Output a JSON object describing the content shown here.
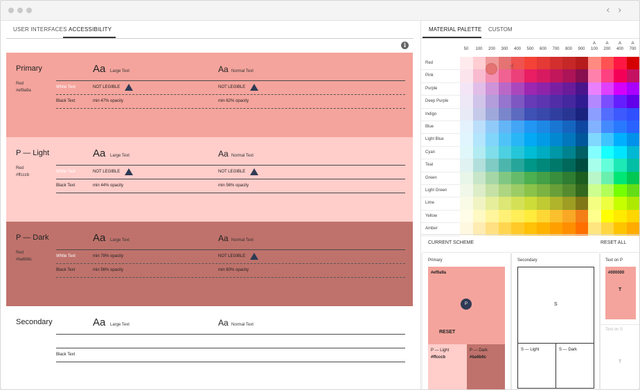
{
  "left_tabs": {
    "user_interfaces": "USER INTERFACES",
    "accessibility": "ACCESSIBILITY"
  },
  "info_icon": "i",
  "sample": {
    "aa": "Aa",
    "large": "Large Text",
    "normal": "Normal Text",
    "white_text": "White Text",
    "black_text": "Black Text",
    "not_legible": "NOT LEGIBLE",
    "warn": "!"
  },
  "rows": [
    {
      "name": "Primary",
      "hue": "Red",
      "hex": "#ef9a9a",
      "bg": "#f4a49c",
      "white_large": "NOT LEGIBLE",
      "white_normal": "NOT LEGIBLE",
      "black_large": "min 47% opacity",
      "black_normal": "min 62% opacity"
    },
    {
      "name": "P — Light",
      "hue": "Red",
      "hex": "#ffcccb",
      "bg": "#ffcdca",
      "white_large": "NOT LEGIBLE",
      "white_normal": "NOT LEGIBLE",
      "black_large": "min 44% opacity",
      "black_normal": "min 56% opacity"
    },
    {
      "name": "P — Dark",
      "hue": "Red",
      "hex": "#ba6b6c",
      "bg": "#bf726b",
      "white_large": "min 78% opacity",
      "white_normal": "NOT LEGIBLE",
      "black_large": "min 56% opacity",
      "black_normal": "min 60% opacity"
    },
    {
      "name": "Secondary",
      "black_text": "Black Text"
    }
  ],
  "right_tabs": {
    "material_palette": "MATERIAL PALETTE",
    "custom": "CUSTOM"
  },
  "shades": [
    "50",
    "100",
    "200",
    "300",
    "400",
    "500",
    "600",
    "700",
    "800",
    "900",
    "A\n100",
    "A\n200",
    "A\n400",
    "A\n700"
  ],
  "shade_top": [
    "",
    "",
    "",
    "",
    "",
    "",
    "",
    "",
    "",
    "",
    "A",
    "A",
    "A",
    "A"
  ],
  "shade_bottom": [
    "50",
    "100",
    "200",
    "300",
    "400",
    "500",
    "600",
    "700",
    "800",
    "900",
    "100",
    "200",
    "400",
    "700"
  ],
  "palette": [
    {
      "name": "Red",
      "colors": [
        "#ffebee",
        "#ffcdd2",
        "#ef9a9a",
        "#e57373",
        "#ef5350",
        "#f44336",
        "#e53935",
        "#d32f2f",
        "#c62828",
        "#b71c1c",
        "#ff8a80",
        "#ff5252",
        "#ff1744",
        "#d50000"
      ]
    },
    {
      "name": "Pink",
      "colors": [
        "#fce4ec",
        "#f8bbd0",
        "#f48fb1",
        "#f06292",
        "#ec407a",
        "#e91e63",
        "#d81b60",
        "#c2185b",
        "#ad1457",
        "#880e4f",
        "#ff80ab",
        "#ff4081",
        "#f50057",
        "#c51162"
      ]
    },
    {
      "name": "Purple",
      "colors": [
        "#f3e5f5",
        "#e1bee7",
        "#ce93d8",
        "#ba68c8",
        "#ab47bc",
        "#9c27b0",
        "#8e24aa",
        "#7b1fa2",
        "#6a1b9a",
        "#4a148c",
        "#ea80fc",
        "#e040fb",
        "#d500f9",
        "#aa00ff"
      ]
    },
    {
      "name": "Deep Purple",
      "colors": [
        "#ede7f6",
        "#d1c4e9",
        "#b39ddb",
        "#9575cd",
        "#7e57c2",
        "#673ab7",
        "#5e35b1",
        "#512da8",
        "#4527a0",
        "#311b92",
        "#b388ff",
        "#7c4dff",
        "#651fff",
        "#6200ea"
      ]
    },
    {
      "name": "Indigo",
      "colors": [
        "#e8eaf6",
        "#c5cae9",
        "#9fa8da",
        "#7986cb",
        "#5c6bc0",
        "#3f51b5",
        "#3949ab",
        "#303f9f",
        "#283593",
        "#1a237e",
        "#8c9eff",
        "#536dfe",
        "#3d5afe",
        "#304ffe"
      ]
    },
    {
      "name": "Blue",
      "colors": [
        "#e3f2fd",
        "#bbdefb",
        "#90caf9",
        "#64b5f6",
        "#42a5f5",
        "#2196f3",
        "#1e88e5",
        "#1976d2",
        "#1565c0",
        "#0d47a1",
        "#82b1ff",
        "#448aff",
        "#2979ff",
        "#2962ff"
      ]
    },
    {
      "name": "Light Blue",
      "colors": [
        "#e1f5fe",
        "#b3e5fc",
        "#81d4fa",
        "#4fc3f7",
        "#29b6f6",
        "#03a9f4",
        "#039be5",
        "#0288d1",
        "#0277bd",
        "#01579b",
        "#80d8ff",
        "#40c4ff",
        "#00b0ff",
        "#0091ea"
      ]
    },
    {
      "name": "Cyan",
      "colors": [
        "#e0f7fa",
        "#b2ebf2",
        "#80deea",
        "#4dd0e1",
        "#26c6da",
        "#00bcd4",
        "#00acc1",
        "#0097a7",
        "#00838f",
        "#006064",
        "#84ffff",
        "#18ffff",
        "#00e5ff",
        "#00b8d4"
      ]
    },
    {
      "name": "Teal",
      "colors": [
        "#e0f2f1",
        "#b2dfdb",
        "#80cbc4",
        "#4db6ac",
        "#26a69a",
        "#009688",
        "#00897b",
        "#00796b",
        "#00695c",
        "#004d40",
        "#a7ffeb",
        "#64ffda",
        "#1de9b6",
        "#00bfa5"
      ]
    },
    {
      "name": "Green",
      "colors": [
        "#e8f5e9",
        "#c8e6c9",
        "#a5d6a7",
        "#81c784",
        "#66bb6a",
        "#4caf50",
        "#43a047",
        "#388e3c",
        "#2e7d32",
        "#1b5e20",
        "#b9f6ca",
        "#69f0ae",
        "#00e676",
        "#00c853"
      ]
    },
    {
      "name": "Light Green",
      "colors": [
        "#f1f8e9",
        "#dcedc8",
        "#c5e1a5",
        "#aed581",
        "#9ccc65",
        "#8bc34a",
        "#7cb342",
        "#689f38",
        "#558b2f",
        "#33691e",
        "#ccff90",
        "#b2ff59",
        "#76ff03",
        "#64dd17"
      ]
    },
    {
      "name": "Lime",
      "colors": [
        "#f9fbe7",
        "#f0f4c3",
        "#e6ee9c",
        "#dce775",
        "#d4e157",
        "#cddc39",
        "#c0ca33",
        "#afb42b",
        "#9e9d24",
        "#827717",
        "#f4ff81",
        "#eeff41",
        "#c6ff00",
        "#aeea00"
      ]
    },
    {
      "name": "Yellow",
      "colors": [
        "#fffde7",
        "#fff9c4",
        "#fff59d",
        "#fff176",
        "#ffee58",
        "#ffeb3b",
        "#fdd835",
        "#fbc02d",
        "#f9a825",
        "#f57f17",
        "#ffff8d",
        "#ffff00",
        "#ffea00",
        "#ffd600"
      ]
    },
    {
      "name": "Amber",
      "colors": [
        "#fff8e1",
        "#ffecb3",
        "#ffe082",
        "#ffd54f",
        "#ffca28",
        "#ffc107",
        "#ffb300",
        "#ffa000",
        "#ff8f00",
        "#ff6f00",
        "#ffe57f",
        "#ffd740",
        "#ffc400",
        "#ffab00"
      ]
    }
  ],
  "scheme": {
    "title": "CURRENT SCHEME",
    "reset_all": "RESET ALL",
    "primary": {
      "title": "Primary",
      "hex": "#ef9a9a",
      "badge": "P",
      "reset": "RESET",
      "light_label": "P — Light",
      "light_hex": "#ffcccb",
      "dark_label": "P — Dark",
      "dark_hex": "#ba6b6c"
    },
    "secondary": {
      "title": "Secondary",
      "badge": "S",
      "light_label": "S — Light",
      "dark_label": "S — Dark"
    },
    "text_on": {
      "title": "Text on P",
      "hex": "#000000",
      "letter": "T",
      "title2": "Text on S",
      "letter2": "T"
    }
  }
}
